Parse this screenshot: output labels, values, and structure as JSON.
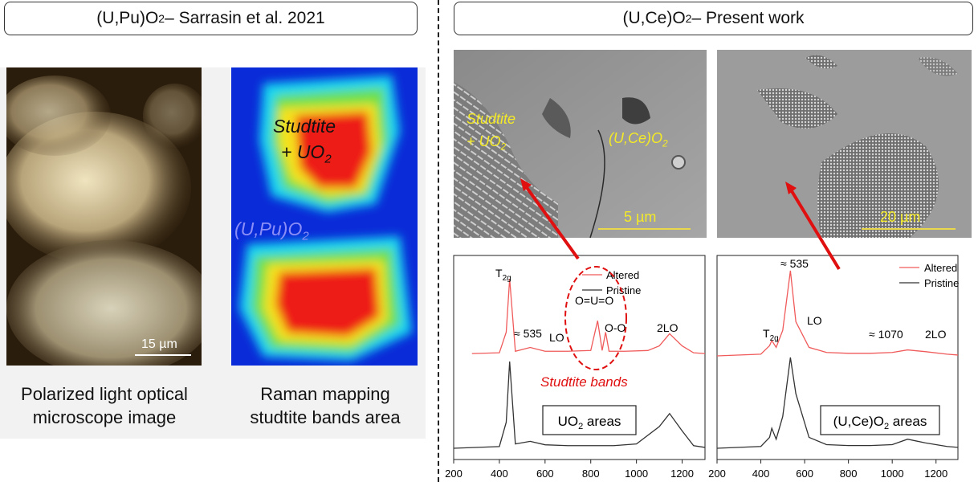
{
  "left_panel": {
    "title_main": "(U,Pu)O",
    "title_sub": "2",
    "title_tail": " – Sarrasin et al. 2021",
    "optical": {
      "scale": "15 µm",
      "caption_line1": "Polarized light optical",
      "caption_line2": "microscope image"
    },
    "raman_map": {
      "label_studtite": "Studtite",
      "label_plus": "+ UO",
      "label_plus_sub": "2",
      "label_matrix": "(U,Pu)O",
      "label_matrix_sub": "2",
      "caption_line1": "Raman mapping",
      "caption_line2": "studtite bands area"
    }
  },
  "right_panel": {
    "title_main": "(U,Ce)O",
    "title_sub": "2",
    "title_tail": " – Present work",
    "sem_left": {
      "label_studtite": "Studtite",
      "label_plus": "+ UO",
      "label_plus_sub": "2",
      "label_matrix": "(U,Ce)O",
      "label_matrix_sub": "2",
      "scale": "5 µm"
    },
    "sem_right": {
      "scale": "20 µm"
    },
    "spectrum_left": {
      "legend_altered": "Altered",
      "legend_pristine": "Pristine",
      "peak_t2g": "T",
      "peak_t2g_sub": "2g",
      "peak_535": "≈ 535",
      "peak_lo": "LO",
      "peak_ouo": "O=U=O",
      "peak_oo": "O-O",
      "peak_2lo": "2LO",
      "band_label": "Studtite bands",
      "area_label": "UO",
      "area_label_sub": "2",
      "area_label_tail": " areas"
    },
    "spectrum_right": {
      "legend_altered": "Altered",
      "legend_pristine": "Pristine",
      "peak_535": "≈ 535",
      "peak_t2g": "T",
      "peak_t2g_sub": "2g",
      "peak_lo": "LO",
      "peak_1070": "≈ 1070",
      "peak_2lo": "2LO",
      "area_label": "(U,Ce)O",
      "area_label_sub": "2",
      "area_label_tail": " areas"
    }
  },
  "colors": {
    "altered": "#f05a5a",
    "pristine": "#333333",
    "arrow": "#e01010",
    "sem_label": "#f4ea26",
    "scalebar": "#e8d84a"
  },
  "chart_data": [
    {
      "type": "line",
      "xlabel": "",
      "ylabel": "",
      "xlim": [
        200,
        1300
      ],
      "x_ticks": [
        "200",
        "400",
        "600",
        "800",
        "1000",
        "1200"
      ],
      "series": [
        {
          "name": "Altered",
          "x": [
            280,
            400,
            430,
            445,
            470,
            535,
            600,
            700,
            800,
            830,
            850,
            865,
            880,
            950,
            1050,
            1100,
            1145,
            1200,
            1250,
            1300
          ],
          "y": [
            0.02,
            0.03,
            0.3,
            1.0,
            0.05,
            0.1,
            0.05,
            0.05,
            0.06,
            0.45,
            0.06,
            0.3,
            0.05,
            0.05,
            0.06,
            0.12,
            0.28,
            0.12,
            0.03,
            0.02
          ]
        },
        {
          "name": "Pristine",
          "x": [
            200,
            400,
            430,
            445,
            470,
            535,
            600,
            700,
            800,
            900,
            1000,
            1100,
            1145,
            1200,
            1250,
            1300
          ],
          "y": [
            0.0,
            0.02,
            0.3,
            1.0,
            0.05,
            0.08,
            0.04,
            0.03,
            0.03,
            0.03,
            0.05,
            0.25,
            0.4,
            0.2,
            0.03,
            0.01
          ]
        }
      ]
    },
    {
      "type": "line",
      "xlabel": "",
      "ylabel": "",
      "xlim": [
        200,
        1300
      ],
      "x_ticks": [
        "200",
        "400",
        "600",
        "800",
        "1000",
        "1200"
      ],
      "series": [
        {
          "name": "Altered",
          "x": [
            200,
            400,
            440,
            450,
            470,
            500,
            535,
            560,
            620,
            700,
            800,
            900,
            1000,
            1070,
            1150,
            1250,
            1300
          ],
          "y": [
            0.0,
            0.02,
            0.12,
            0.18,
            0.1,
            0.3,
            1.0,
            0.4,
            0.1,
            0.04,
            0.03,
            0.03,
            0.04,
            0.07,
            0.05,
            0.02,
            0.01
          ]
        },
        {
          "name": "Pristine",
          "x": [
            200,
            400,
            440,
            450,
            470,
            500,
            535,
            560,
            620,
            700,
            800,
            900,
            1000,
            1070,
            1150,
            1250,
            1300
          ],
          "y": [
            0.0,
            0.02,
            0.12,
            0.22,
            0.1,
            0.35,
            1.0,
            0.6,
            0.12,
            0.04,
            0.03,
            0.03,
            0.04,
            0.1,
            0.06,
            0.02,
            0.01
          ]
        }
      ]
    }
  ]
}
